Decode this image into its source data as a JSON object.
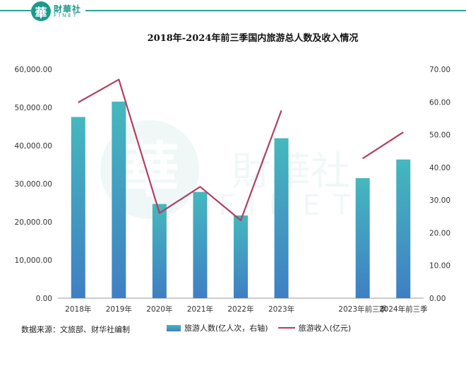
{
  "brand": {
    "seal_char": "華",
    "name_cn": "財華社",
    "name_en": "FINET",
    "color": "#1b9a8e"
  },
  "source_note": "数据来源：文旅部、财华社编制",
  "chart_data": {
    "type": "bar",
    "title": "2018年-2024年前三季国内旅游总人数及收入情况",
    "categories": [
      "2018年",
      "2019年",
      "2020年",
      "2021年",
      "2022年",
      "2023年",
      "",
      "2023年前三季",
      "2024年前三季"
    ],
    "left_axis": {
      "ticks": [
        "0.00",
        "10,000.00",
        "20,000.00",
        "30,000.00",
        "40,000.00",
        "50,000.00",
        "60,000.00"
      ],
      "ylim": [
        0,
        60000
      ]
    },
    "right_axis": {
      "ticks": [
        "0.00",
        "10.00",
        "20.00",
        "30.00",
        "40.00",
        "50.00",
        "60.00",
        "70.00"
      ],
      "ylim": [
        0,
        70
      ]
    },
    "series": [
      {
        "name": "旅游人数(亿人次，右轴)",
        "type": "bar",
        "axis": "right",
        "values": [
          55.4,
          60.1,
          28.8,
          32.5,
          25.3,
          48.9,
          null,
          36.7,
          42.4
        ],
        "color_top": "#45b8be",
        "color_bottom": "#3f7fc4"
      },
      {
        "name": "旅游收入(亿元)",
        "type": "line",
        "axis": "left",
        "values": [
          51300,
          57300,
          22300,
          29200,
          20400,
          49200,
          null,
          36600,
          43500
        ],
        "color": "#b23f60"
      }
    ],
    "grid": false,
    "legend": "bottom"
  }
}
